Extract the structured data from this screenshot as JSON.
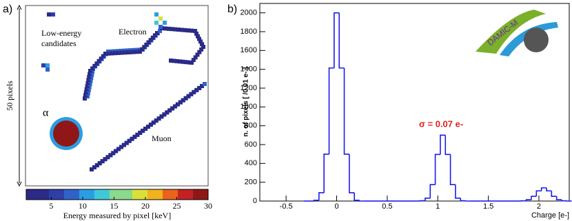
{
  "chart_data": [
    {
      "type": "image",
      "panel_label": "a)",
      "annotations": [
        "Low-energy candidates",
        "Electron",
        "α",
        "Muon"
      ],
      "side_label": "50 pixels",
      "colorbar": {
        "clim": [
          1,
          30
        ],
        "ticks": [
          5,
          10,
          15,
          20,
          25,
          30
        ],
        "label": "Energy measured by pixel [keV]",
        "colormap": [
          "#2b2a87",
          "#2e3fa8",
          "#2f63c9",
          "#2a9ee3",
          "#3fc8d8",
          "#8bd98a",
          "#d9e03a",
          "#f2b11f",
          "#e9631c",
          "#c32222",
          "#8f1717"
        ]
      }
    },
    {
      "type": "histogram",
      "panel_label": "b)",
      "xlabel": "Charge [e-]",
      "ylabel": "n. of pixels [ /0.01 e- ]",
      "annotation": "σ = 0.07 e-",
      "logo": "DAMIC-M",
      "color": "#1a1aee",
      "annotation_color": "#e02020",
      "bins": [
        -0.325,
        -0.275,
        -0.225,
        -0.175,
        -0.125,
        -0.075,
        -0.025,
        0.025,
        0.075,
        0.125,
        0.175,
        0.225,
        0.275,
        0.325,
        0.375,
        0.425,
        0.475,
        0.525,
        0.575,
        0.625,
        0.675,
        0.725,
        0.775,
        0.825,
        0.875,
        0.925,
        0.975,
        1.025,
        1.075,
        1.125,
        1.175,
        1.225,
        1.275,
        1.325,
        1.375,
        1.425,
        1.475,
        1.525,
        1.575,
        1.625,
        1.675,
        1.725,
        1.775,
        1.825,
        1.875,
        1.925,
        1.975,
        2.025,
        2.075,
        2.125,
        2.175,
        2.225,
        2.275,
        2.325
      ],
      "values": [
        0,
        0,
        8,
        88,
        498,
        1414,
        2000,
        1414,
        498,
        88,
        8,
        0,
        0,
        0,
        0,
        0,
        0,
        0,
        0,
        0,
        0,
        0,
        0,
        3,
        31,
        174,
        495,
        700,
        495,
        174,
        31,
        3,
        0,
        0,
        0,
        0,
        0,
        0,
        0,
        0,
        0,
        0,
        0,
        2,
        14,
        50,
        108,
        140,
        108,
        50,
        14,
        2,
        0,
        0
      ],
      "xlim": [
        -0.76,
        2.3
      ],
      "ylim": [
        0,
        2100
      ],
      "xticks": [
        -0.5,
        0,
        0.5,
        1,
        1.5,
        2
      ],
      "yticks": [
        0,
        200,
        400,
        600,
        800,
        1000,
        1200,
        1400,
        1600,
        1800,
        2000
      ]
    }
  ]
}
